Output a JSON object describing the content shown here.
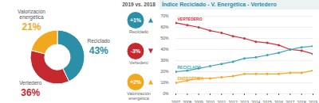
{
  "chart_data": [
    {
      "type": "pie",
      "categories": [
        "Reciclado",
        "Vertedero",
        "Valorización energética"
      ],
      "values": [
        43,
        36,
        21
      ],
      "value_labels": [
        "43%",
        "36%",
        "21%"
      ],
      "colors": [
        "#2b8fa8",
        "#c62830",
        "#f2a81d"
      ],
      "data_labels": true
    },
    {
      "type": "comparison",
      "title": "2019 vs. 2018",
      "categories": [
        "Reciclado",
        "Vertedero",
        "Valorización energética"
      ],
      "values": [
        1,
        -3,
        2
      ],
      "value_labels": [
        "+1%",
        "-3%",
        "+2%"
      ],
      "colors": [
        "#2b8fa8",
        "#c62830",
        "#f2a81d"
      ]
    },
    {
      "type": "line",
      "title": "Índice Reciclado - V. Energética - Vertedero",
      "x": [
        2007,
        2008,
        2009,
        2010,
        2011,
        2012,
        2013,
        2014,
        2015,
        2016,
        2017,
        2018,
        2019
      ],
      "series": [
        {
          "name": "VERTEDERO",
          "color": "#d0313a",
          "values": [
            64,
            62,
            60,
            57,
            55,
            52,
            50,
            47,
            46,
            44,
            40,
            39,
            36
          ]
        },
        {
          "name": "RECICLADO",
          "color": "#3aa6b9",
          "values": [
            20,
            21,
            23,
            25,
            27,
            29,
            32,
            33,
            35,
            37,
            40,
            42,
            43
          ]
        },
        {
          "name": "ENERGÉTICA",
          "color": "#f5a623",
          "values": [
            10,
            12,
            14,
            14,
            15,
            16,
            18,
            18,
            18,
            18,
            19,
            19,
            21
          ]
        }
      ],
      "xlim": [
        2007,
        2019
      ],
      "xticks": [
        2007,
        2008,
        2009,
        2010,
        2011,
        2012,
        2013,
        2014,
        2015,
        2016,
        2017,
        2018,
        2019
      ],
      "ylim": [
        0,
        70
      ],
      "yticks": [
        {
          "value": 0,
          "label": "0%"
        },
        {
          "value": 10,
          "label": "10%"
        },
        {
          "value": 20,
          "label": "20%"
        },
        {
          "value": 30,
          "label": "30%"
        },
        {
          "value": 40,
          "label": "40%"
        },
        {
          "value": 50,
          "label": "50%"
        },
        {
          "value": 60,
          "label": "60%"
        },
        {
          "value": 70,
          "label": "70%"
        }
      ],
      "grid": true,
      "marker": "circle"
    }
  ]
}
